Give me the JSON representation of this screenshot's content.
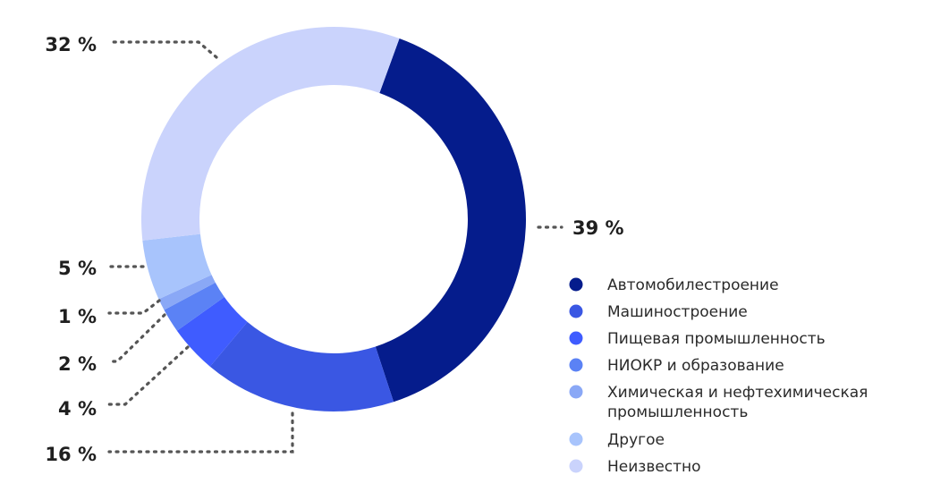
{
  "chart_data": {
    "type": "pie",
    "title": "",
    "categories": [
      "Автомобилестроение",
      "Машиностроение",
      "Пищевая промышленность",
      "НИОКР и образование",
      "Химическая и нефтехимическая промышленность",
      "Другое",
      "Неизвестно"
    ],
    "values": [
      39,
      16,
      4,
      2,
      1,
      5,
      32
    ],
    "value_labels": [
      "39 %",
      "16 %",
      "4 %",
      "2 %",
      "1 %",
      "5 %",
      "32 %"
    ],
    "colors": [
      "#051c8c",
      "#3a57e3",
      "#3f5cff",
      "#5b82f5",
      "#8aa8f6",
      "#a8c4fc",
      "#cad3fc"
    ],
    "legend": {
      "position": "bottom-right",
      "entries": [
        {
          "lines": [
            "Автомобилестроение"
          ],
          "color": "#051c8c"
        },
        {
          "lines": [
            "Машиностроение"
          ],
          "color": "#3a57e3"
        },
        {
          "lines": [
            "Пищевая промышленность"
          ],
          "color": "#3f5cff"
        },
        {
          "lines": [
            "НИОКР и образование"
          ],
          "color": "#5b82f5"
        },
        {
          "lines": [
            "Химическая и нефтехимическая",
            "промышленность"
          ],
          "color": "#8aa8f6"
        },
        {
          "lines": [
            "Другое"
          ],
          "color": "#a8c4fc"
        },
        {
          "lines": [
            "Неизвестно"
          ],
          "color": "#cad3fc"
        }
      ]
    },
    "donut": true
  }
}
